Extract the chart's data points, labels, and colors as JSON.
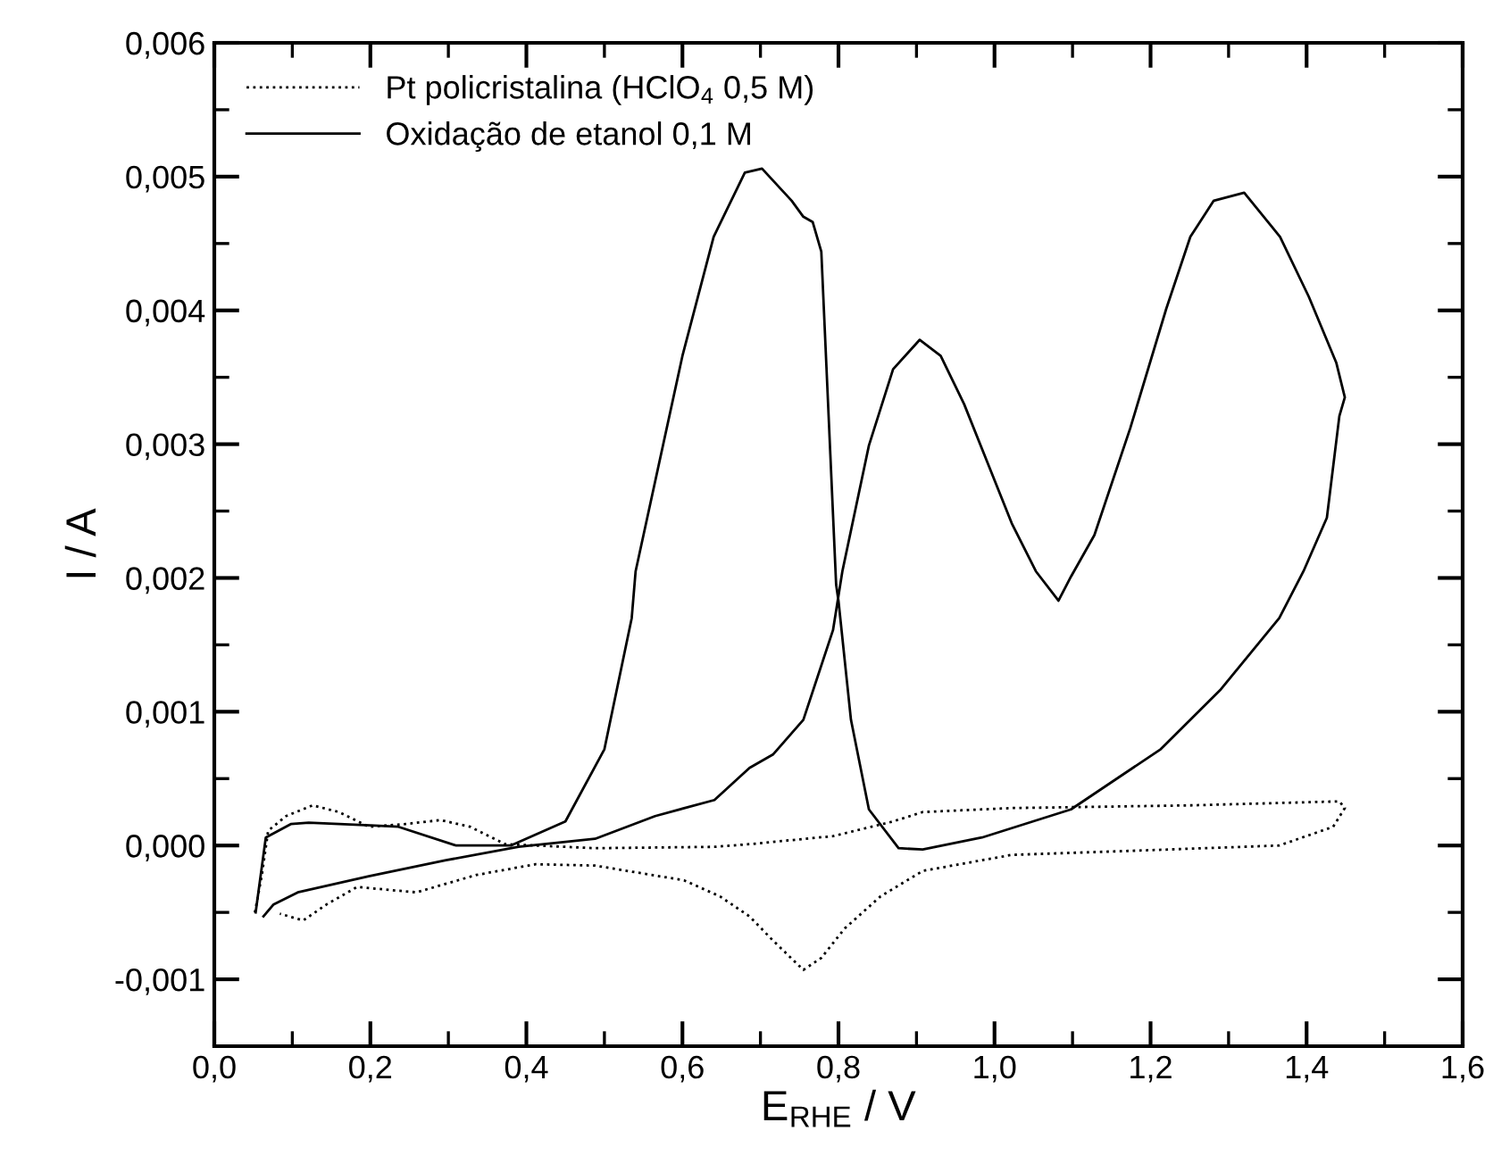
{
  "chart_data": {
    "type": "line",
    "xlabel": "E$_{RHE}$ / V",
    "ylabel": "I / A",
    "xlim": [
      0.0,
      1.6
    ],
    "ylim": [
      -0.0015,
      0.006
    ],
    "xticks": [
      {
        "value": 0.0,
        "label": "0,0"
      },
      {
        "value": 0.2,
        "label": "0,2"
      },
      {
        "value": 0.4,
        "label": "0,4"
      },
      {
        "value": 0.6,
        "label": "0,6"
      },
      {
        "value": 0.8,
        "label": "0,8"
      },
      {
        "value": 1.0,
        "label": "1,0"
      },
      {
        "value": 1.2,
        "label": "1,2"
      },
      {
        "value": 1.4,
        "label": "1,4"
      },
      {
        "value": 1.6,
        "label": "1,6"
      }
    ],
    "yticks": [
      {
        "value": -0.001,
        "label": "-0,001"
      },
      {
        "value": 0.0,
        "label": "0,000"
      },
      {
        "value": 0.001,
        "label": "0,001"
      },
      {
        "value": 0.002,
        "label": "0,002"
      },
      {
        "value": 0.003,
        "label": "0,003"
      },
      {
        "value": 0.004,
        "label": "0,004"
      },
      {
        "value": 0.005,
        "label": "0,005"
      },
      {
        "value": 0.006,
        "label": "0,006"
      }
    ],
    "grid": false,
    "legend": "top left",
    "marker": "none",
    "series": [
      {
        "name": "Pt policristalina (HClO$_{4}$ 0,5 M)",
        "color": "#000000",
        "line_style": "dotted",
        "x": [
          0.052,
          0.061,
          0.069,
          0.092,
          0.126,
          0.16,
          0.198,
          0.244,
          0.29,
          0.328,
          0.373,
          0.488,
          0.641,
          0.686,
          0.793,
          0.87,
          0.908,
          1.022,
          1.251,
          1.442,
          1.449,
          1.434,
          1.365,
          1.174,
          1.022,
          0.908,
          0.854,
          0.808,
          0.778,
          0.755,
          0.716,
          0.686,
          0.648,
          0.602,
          0.488,
          0.412,
          0.336,
          0.259,
          0.183,
          0.144,
          0.114,
          0.084
        ],
        "values": [
          -0.0005,
          -0.00022,
          0.00011,
          0.00022,
          0.0003,
          0.00025,
          0.00014,
          0.00016,
          0.00019,
          0.00014,
          1e-05,
          -2e-05,
          -1e-05,
          1e-05,
          7e-05,
          0.00018,
          0.00025,
          0.00028,
          0.0003,
          0.00033,
          0.00028,
          0.00014,
          0.0,
          -4e-05,
          -7e-05,
          -0.00019,
          -0.00038,
          -0.00062,
          -0.00084,
          -0.00093,
          -0.00071,
          -0.00053,
          -0.00038,
          -0.00026,
          -0.00015,
          -0.00014,
          -0.00022,
          -0.00035,
          -0.00031,
          -0.00044,
          -0.00056,
          -0.00051
        ]
      },
      {
        "name": "Oxidação de etanol 0,1 M",
        "color": "#000000",
        "line_style": "solid",
        "x": [
          0.053,
          0.066,
          0.098,
          0.121,
          0.2,
          0.236,
          0.31,
          0.38,
          0.45,
          0.5,
          0.535,
          0.54,
          0.6,
          0.64,
          0.68,
          0.702,
          0.74,
          0.755,
          0.767,
          0.778,
          0.797,
          0.8,
          0.816,
          0.839,
          0.877,
          0.908,
          0.984,
          1.098,
          1.213,
          1.289,
          1.365,
          1.396,
          1.426,
          1.442,
          1.449,
          1.438,
          1.403,
          1.366,
          1.32,
          1.281,
          1.251,
          1.22,
          1.174,
          1.128,
          1.098,
          1.082,
          1.053,
          1.022,
          0.961,
          0.931,
          0.904,
          0.87,
          0.839,
          0.805,
          0.793,
          0.755,
          0.716,
          0.686,
          0.641,
          0.565,
          0.488,
          0.39,
          0.297,
          0.198,
          0.107,
          0.076,
          0.063
        ],
        "values": [
          -0.0005,
          6e-05,
          0.00016,
          0.00017,
          0.00015,
          0.00014,
          0.0,
          0.0,
          0.00018,
          0.00072,
          0.0017,
          0.00205,
          0.00366,
          0.00455,
          0.00503,
          0.00506,
          0.00482,
          0.0047,
          0.00466,
          0.00444,
          0.00195,
          0.00183,
          0.00094,
          0.00027,
          -2e-05,
          -3e-05,
          6e-05,
          0.00027,
          0.00072,
          0.00116,
          0.0017,
          0.00205,
          0.00245,
          0.00321,
          0.00335,
          0.00361,
          0.0041,
          0.00455,
          0.00488,
          0.00482,
          0.00455,
          0.00401,
          0.00312,
          0.00232,
          0.00201,
          0.00183,
          0.00205,
          0.00241,
          0.0033,
          0.00366,
          0.00378,
          0.00356,
          0.00299,
          0.00205,
          0.00161,
          0.00094,
          0.00068,
          0.00058,
          0.00034,
          0.00022,
          5e-05,
          -1e-05,
          -0.00011,
          -0.00023,
          -0.00035,
          -0.00044,
          -0.00053
        ]
      }
    ]
  }
}
